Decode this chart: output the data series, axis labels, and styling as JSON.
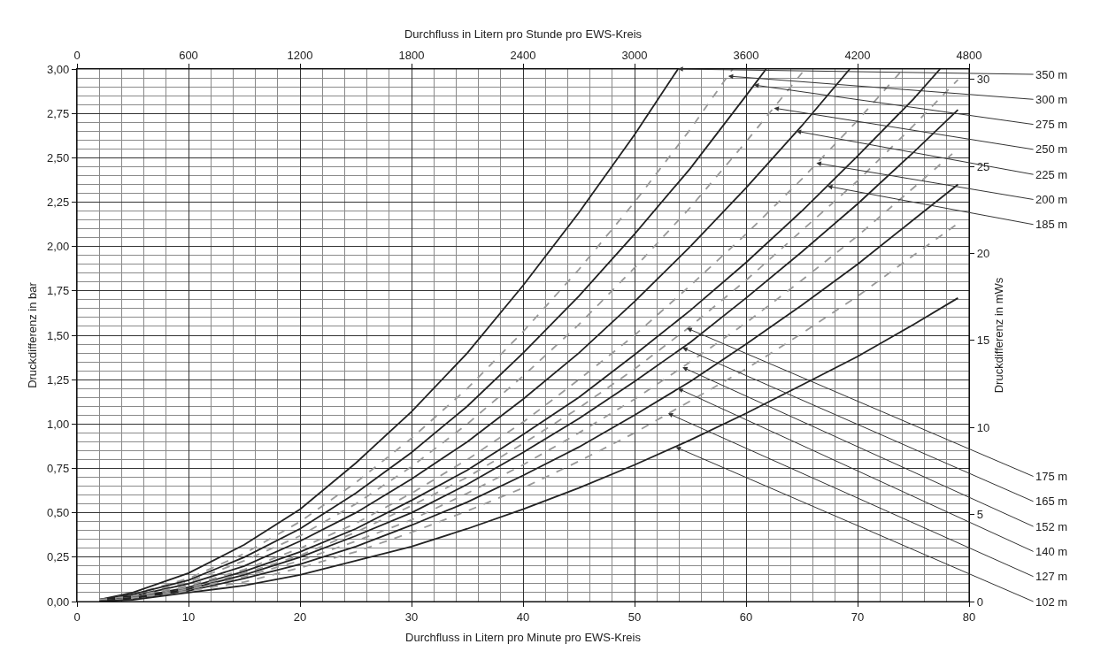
{
  "chart_data": {
    "type": "line",
    "xlabel": "Durchfluss in Litern pro Minute pro EWS-Kreis",
    "ylabel": "Druckdifferenz in bar",
    "x2label": "Durchfluss in Litern pro Stunde pro EWS-Kreis",
    "y2label": "Druckdifferenz in mWs",
    "xlim": [
      0,
      80
    ],
    "xticks": [
      0,
      10,
      20,
      30,
      40,
      50,
      60,
      70,
      80
    ],
    "ylim": [
      0,
      3
    ],
    "yticks": [
      {
        "value": 0,
        "label": "0,00"
      },
      {
        "value": 0.25,
        "label": "0,25"
      },
      {
        "value": 0.5,
        "label": "0,50"
      },
      {
        "value": 0.75,
        "label": "0,75"
      },
      {
        "value": 1,
        "label": "1,00"
      },
      {
        "value": 1.25,
        "label": "1,25"
      },
      {
        "value": 1.5,
        "label": "1,50"
      },
      {
        "value": 1.75,
        "label": "1,75"
      },
      {
        "value": 2,
        "label": "2,00"
      },
      {
        "value": 2.25,
        "label": "2,25"
      },
      {
        "value": 2.5,
        "label": "2,50"
      },
      {
        "value": 2.75,
        "label": "2,75"
      },
      {
        "value": 3,
        "label": "3,00"
      }
    ],
    "x2lim": [
      0,
      4800
    ],
    "x2ticks": [
      0,
      600,
      1200,
      1800,
      2400,
      3000,
      3600,
      4200,
      4800
    ],
    "y2lim": [
      0,
      30.59
    ],
    "y2ticks": [
      0,
      5,
      10,
      15,
      20,
      25,
      30
    ],
    "grid": true,
    "marker": "none",
    "series": [
      {
        "color": "#222222",
        "line_style": "solid",
        "x": [
          2,
          5,
          10,
          15,
          20,
          25,
          30,
          35,
          40,
          45,
          50,
          53.9
        ],
        "values": [
          0.01,
          0.05,
          0.16,
          0.32,
          0.52,
          0.78,
          1.07,
          1.4,
          1.78,
          2.19,
          2.63,
          3.0
        ]
      },
      {
        "color": "#999999",
        "line_style": "dashed",
        "x": [
          2,
          5,
          10,
          15,
          20,
          25,
          30,
          35,
          40,
          45,
          50,
          55,
          58.8
        ],
        "values": [
          0.01,
          0.04,
          0.13,
          0.27,
          0.45,
          0.67,
          0.92,
          1.2,
          1.52,
          1.87,
          2.25,
          2.66,
          3.0
        ]
      },
      {
        "color": "#222222",
        "line_style": "solid",
        "x": [
          2,
          5,
          10,
          15,
          20,
          25,
          30,
          35,
          40,
          45,
          50,
          55,
          60,
          61.8
        ],
        "values": [
          0.01,
          0.04,
          0.12,
          0.25,
          0.41,
          0.61,
          0.84,
          1.1,
          1.4,
          1.72,
          2.07,
          2.44,
          2.85,
          3.0
        ]
      },
      {
        "color": "#999999",
        "line_style": "dashed",
        "x": [
          2,
          5,
          10,
          15,
          20,
          25,
          30,
          35,
          40,
          45,
          50,
          55,
          60,
          65.3
        ],
        "values": [
          0.01,
          0.03,
          0.11,
          0.23,
          0.37,
          0.55,
          0.76,
          1.0,
          1.27,
          1.56,
          1.88,
          2.22,
          2.59,
          3.0
        ]
      },
      {
        "color": "#222222",
        "line_style": "solid",
        "x": [
          2,
          5,
          10,
          15,
          20,
          25,
          30,
          35,
          40,
          45,
          50,
          55,
          60,
          65,
          69.3
        ],
        "values": [
          0.01,
          0.03,
          0.1,
          0.2,
          0.34,
          0.5,
          0.69,
          0.9,
          1.14,
          1.4,
          1.69,
          2.0,
          2.33,
          2.68,
          3.0
        ]
      },
      {
        "color": "#999999",
        "line_style": "dashed",
        "x": [
          2,
          5,
          10,
          15,
          20,
          25,
          30,
          35,
          40,
          45,
          50,
          55,
          60,
          65,
          70,
          74.1
        ],
        "values": [
          0.01,
          0.03,
          0.09,
          0.18,
          0.3,
          0.44,
          0.61,
          0.8,
          1.01,
          1.25,
          1.5,
          1.78,
          2.07,
          2.38,
          2.71,
          3.0
        ]
      },
      {
        "color": "#222222",
        "line_style": "solid",
        "x": [
          2,
          5,
          10,
          15,
          20,
          25,
          30,
          35,
          40,
          45,
          50,
          55,
          60,
          65,
          70,
          75,
          77.4
        ],
        "values": [
          0.0,
          0.02,
          0.08,
          0.17,
          0.28,
          0.41,
          0.57,
          0.74,
          0.94,
          1.15,
          1.39,
          1.64,
          1.91,
          2.2,
          2.51,
          2.83,
          3.0
        ]
      },
      {
        "color": "#999999",
        "line_style": "dashed",
        "x": [
          2,
          5,
          10,
          15,
          20,
          25,
          30,
          35,
          40,
          45,
          50,
          55,
          60,
          65,
          70,
          75,
          79
        ],
        "values": [
          0.0,
          0.02,
          0.08,
          0.16,
          0.26,
          0.39,
          0.54,
          0.7,
          0.89,
          1.09,
          1.31,
          1.55,
          1.81,
          2.09,
          2.37,
          2.68,
          2.94
        ]
      },
      {
        "color": "#222222",
        "line_style": "solid",
        "x": [
          2,
          5,
          10,
          15,
          20,
          25,
          30,
          35,
          40,
          45,
          50,
          55,
          60,
          65,
          70,
          75,
          79
        ],
        "values": [
          0.0,
          0.02,
          0.07,
          0.15,
          0.25,
          0.37,
          0.5,
          0.66,
          0.84,
          1.03,
          1.24,
          1.46,
          1.71,
          1.97,
          2.24,
          2.53,
          2.77
        ]
      },
      {
        "color": "#999999",
        "line_style": "dashed",
        "x": [
          2,
          5,
          10,
          15,
          20,
          25,
          30,
          35,
          40,
          45,
          50,
          55,
          60,
          65,
          70,
          75,
          79
        ],
        "values": [
          0.0,
          0.02,
          0.07,
          0.14,
          0.23,
          0.34,
          0.46,
          0.61,
          0.77,
          0.95,
          1.14,
          1.35,
          1.57,
          1.81,
          2.06,
          2.33,
          2.55
        ]
      },
      {
        "color": "#222222",
        "line_style": "solid",
        "x": [
          2,
          5,
          10,
          15,
          20,
          25,
          30,
          35,
          40,
          45,
          50,
          55,
          60,
          65,
          70,
          75,
          79
        ],
        "values": [
          0.0,
          0.02,
          0.06,
          0.13,
          0.21,
          0.31,
          0.43,
          0.56,
          0.71,
          0.87,
          1.05,
          1.24,
          1.45,
          1.67,
          1.9,
          2.15,
          2.35
        ]
      },
      {
        "color": "#999999",
        "line_style": "dashed",
        "x": [
          2,
          5,
          10,
          15,
          20,
          25,
          30,
          35,
          40,
          45,
          50,
          55,
          60,
          65,
          70,
          75,
          79
        ],
        "values": [
          0.0,
          0.02,
          0.06,
          0.11,
          0.19,
          0.28,
          0.39,
          0.51,
          0.64,
          0.79,
          0.95,
          1.13,
          1.31,
          1.51,
          1.72,
          1.95,
          2.13
        ]
      },
      {
        "color": "#222222",
        "line_style": "solid",
        "x": [
          2,
          5,
          10,
          15,
          20,
          25,
          30,
          35,
          40,
          45,
          50,
          55,
          60,
          65,
          70,
          75,
          79
        ],
        "values": [
          0.0,
          0.01,
          0.05,
          0.09,
          0.15,
          0.23,
          0.31,
          0.41,
          0.52,
          0.64,
          0.77,
          0.91,
          1.06,
          1.22,
          1.38,
          1.56,
          1.71
        ]
      }
    ],
    "annotations": [
      {
        "text": "350 m",
        "x": 53.9,
        "y": 3.0
      },
      {
        "text": "300 m",
        "x": 58.4,
        "y": 2.96
      },
      {
        "text": "275 m",
        "x": 60.7,
        "y": 2.91
      },
      {
        "text": "250 m",
        "x": 62.5,
        "y": 2.78
      },
      {
        "text": "225 m",
        "x": 64.5,
        "y": 2.65
      },
      {
        "text": "200 m",
        "x": 66.3,
        "y": 2.47
      },
      {
        "text": "185 m",
        "x": 67.3,
        "y": 2.34
      },
      {
        "text": "175 m",
        "x": 54.7,
        "y": 1.54
      },
      {
        "text": "165 m",
        "x": 54.3,
        "y": 1.43
      },
      {
        "text": "152 m",
        "x": 54.3,
        "y": 1.32
      },
      {
        "text": "140 m",
        "x": 53.9,
        "y": 1.2
      },
      {
        "text": "127 m",
        "x": 53.0,
        "y": 1.06
      },
      {
        "text": "102 m",
        "x": 53.7,
        "y": 0.87
      }
    ]
  }
}
